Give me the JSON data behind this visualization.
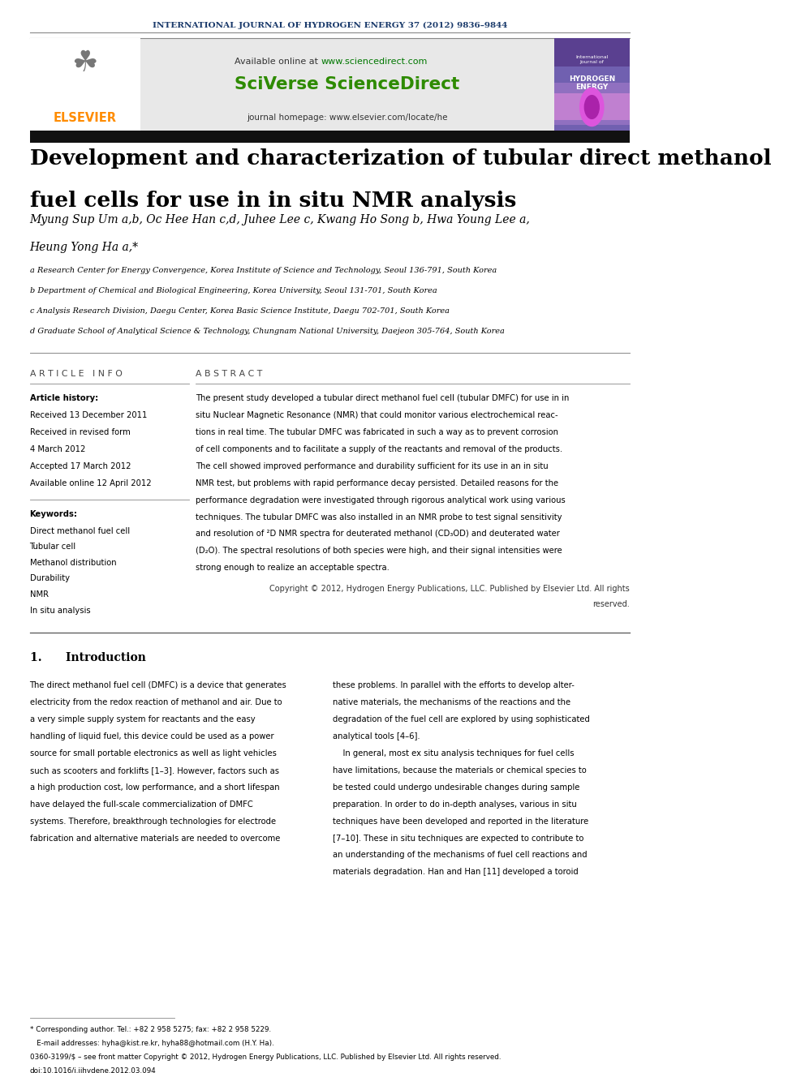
{
  "page_bg": "#ffffff",
  "top_journal_text": "INTERNATIONAL JOURNAL OF HYDROGEN ENERGY 37 (2012) 9836–9844",
  "top_journal_color": "#1a3a6b",
  "available_online_text": "Available online at ",
  "available_online_url": "www.sciencedirect.com",
  "available_online_url_color": "#007700",
  "sciverse_text": "SciVerse ScienceDirect",
  "sciverse_color": "#2e8b00",
  "journal_homepage_text": "journal homepage: www.elsevier.com/locate/he",
  "elsevier_color": "#ff8c00",
  "header_bg": "#e8e8e8",
  "title_bar_bg": "#111111",
  "main_title_line1": "Development and characterization of tubular direct methanol",
  "main_title_line2": "fuel cells for use in in situ NMR analysis",
  "authors_line1": "Myung Sup Um a,b, Oc Hee Han c,d, Juhee Lee c, Kwang Ho Song b, Hwa Young Lee a,",
  "authors_line2": "Heung Yong Ha a,*",
  "affil_a": "a Research Center for Energy Convergence, Korea Institute of Science and Technology, Seoul 136-791, South Korea",
  "affil_b": "b Department of Chemical and Biological Engineering, Korea University, Seoul 131-701, South Korea",
  "affil_c": "c Analysis Research Division, Daegu Center, Korea Basic Science Institute, Daegu 702-701, South Korea",
  "affil_d": "d Graduate School of Analytical Science & Technology, Chungnam National University, Daejeon 305-764, South Korea",
  "article_info_header": "A R T I C L E   I N F O",
  "article_history_label": "Article history:",
  "received1": "Received 13 December 2011",
  "received_revised": "Received in revised form",
  "received_revised2": "4 March 2012",
  "accepted": "Accepted 17 March 2012",
  "available_online": "Available online 12 April 2012",
  "keywords_label": "Keywords:",
  "keywords": [
    "Direct methanol fuel cell",
    "Tubular cell",
    "Methanol distribution",
    "Durability",
    "NMR",
    "In situ analysis"
  ],
  "abstract_header": "A B S T R A C T",
  "abstract_lines": [
    "The present study developed a tubular direct methanol fuel cell (tubular DMFC) for use in in",
    "situ Nuclear Magnetic Resonance (NMR) that could monitor various electrochemical reac-",
    "tions in real time. The tubular DMFC was fabricated in such a way as to prevent corrosion",
    "of cell components and to facilitate a supply of the reactants and removal of the products.",
    "The cell showed improved performance and durability sufficient for its use in an in situ",
    "NMR test, but problems with rapid performance decay persisted. Detailed reasons for the",
    "performance degradation were investigated through rigorous analytical work using various",
    "techniques. The tubular DMFC was also installed in an NMR probe to test signal sensitivity",
    "and resolution of ²D NMR spectra for deuterated methanol (CD₃OD) and deuterated water",
    "(D₂O). The spectral resolutions of both species were high, and their signal intensities were",
    "strong enough to realize an acceptable spectra."
  ],
  "copyright_line1": "Copyright © 2012, Hydrogen Energy Publications, LLC. Published by Elsevier Ltd. All rights",
  "copyright_line2": "reserved.",
  "section1_title": "1.      Introduction",
  "intro_col1_lines": [
    "The direct methanol fuel cell (DMFC) is a device that generates",
    "electricity from the redox reaction of methanol and air. Due to",
    "a very simple supply system for reactants and the easy",
    "handling of liquid fuel, this device could be used as a power",
    "source for small portable electronics as well as light vehicles",
    "such as scooters and forklifts [1–3]. However, factors such as",
    "a high production cost, low performance, and a short lifespan",
    "have delayed the full-scale commercialization of DMFC",
    "systems. Therefore, breakthrough technologies for electrode",
    "fabrication and alternative materials are needed to overcome"
  ],
  "intro_col2_lines": [
    "these problems. In parallel with the efforts to develop alter-",
    "native materials, the mechanisms of the reactions and the",
    "degradation of the fuel cell are explored by using sophisticated",
    "analytical tools [4–6].",
    "    In general, most ex situ analysis techniques for fuel cells",
    "have limitations, because the materials or chemical species to",
    "be tested could undergo undesirable changes during sample",
    "preparation. In order to do in-depth analyses, various in situ",
    "techniques have been developed and reported in the literature",
    "[7–10]. These in situ techniques are expected to contribute to",
    "an understanding of the mechanisms of fuel cell reactions and",
    "materials degradation. Han and Han [11] developed a toroid"
  ],
  "footnote_lines": [
    "* Corresponding author. Tel.: +82 2 958 5275; fax: +82 2 958 5229.",
    "   E-mail addresses: hyha@kist.re.kr, hyha88@hotmail.com (H.Y. Ha).",
    "0360-3199/$ – see front matter Copyright © 2012, Hydrogen Energy Publications, LLC. Published by Elsevier Ltd. All rights reserved.",
    "doi:10.1016/j.ijhydene.2012.03.094"
  ]
}
